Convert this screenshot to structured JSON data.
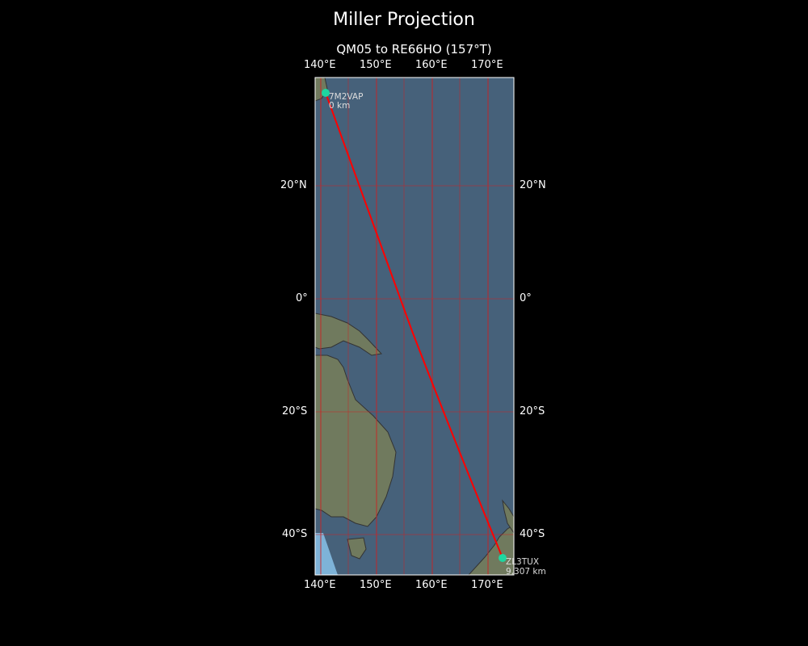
{
  "title": "Miller Projection",
  "subtitle": "QM05 to RE66HO (157°T)",
  "map": {
    "projection": "Miller",
    "extent": {
      "lon": [
        139,
        174.6
      ],
      "lat": [
        37.5,
        -46.5
      ]
    },
    "lon_ticks": [
      "140°E",
      "150°E",
      "160°E",
      "170°E"
    ],
    "lat_ticks": [
      "20°N",
      "0°",
      "20°S",
      "40°S"
    ],
    "gridline_color": "#cc2222",
    "path_color": "#ff0000",
    "marker_color": "#1ed6a0",
    "ocean_color": "#46617a",
    "land_color": "#707a5e"
  },
  "points": [
    {
      "label": "7M2VAP",
      "distance": "0 km"
    },
    {
      "label": "ZL3TUX",
      "distance": "9,307 km"
    }
  ]
}
